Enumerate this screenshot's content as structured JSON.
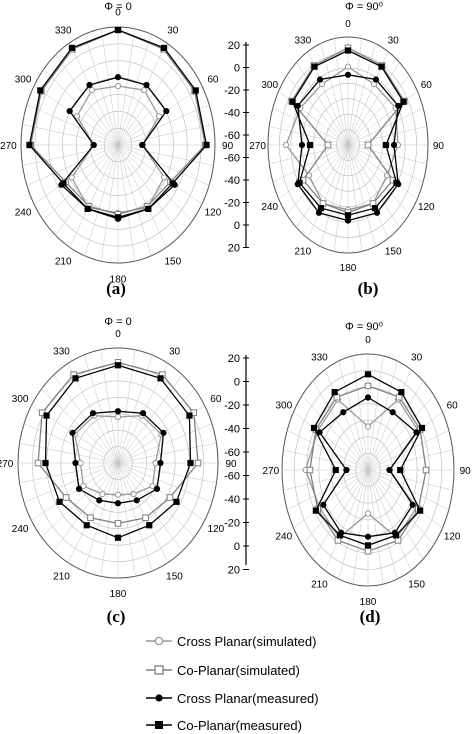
{
  "chart_data": [
    {
      "panel": "(a)",
      "type": "polar-line",
      "title": "Φ = 0",
      "angle_labels": [
        "0",
        "30",
        "60",
        "90",
        "120",
        "150",
        "180",
        "210",
        "240",
        "270",
        "300",
        "330"
      ],
      "radial_range": [
        -60,
        20
      ],
      "series": [
        {
          "name": "Cross Planar(simulated)",
          "angles": [
            0,
            30,
            60,
            90,
            120,
            150,
            180,
            210,
            240,
            270,
            300,
            330
          ],
          "values": [
            -20,
            -17,
            -21,
            -40,
            -16,
            -11,
            -14,
            -11,
            -16,
            -40,
            -21,
            -17
          ]
        },
        {
          "name": "Co-Planar(simulated)",
          "angles": [
            0,
            30,
            60,
            90,
            120,
            150,
            180,
            210,
            240,
            270,
            300,
            330
          ],
          "values": [
            18,
            15,
            13,
            12,
            -10,
            -12,
            -13,
            -12,
            -10,
            12,
            13,
            15
          ]
        },
        {
          "name": "Cross Planar(measured)",
          "angles": [
            0,
            30,
            60,
            90,
            120,
            150,
            180,
            210,
            240,
            270,
            300,
            330
          ],
          "values": [
            -14,
            -13,
            -14,
            -40,
            -6,
            -10,
            -10,
            -10,
            -6,
            -40,
            -14,
            -13
          ]
        },
        {
          "name": "Co-Planar(measured)",
          "angles": [
            0,
            30,
            60,
            90,
            120,
            150,
            180,
            210,
            240,
            270,
            300,
            330
          ],
          "values": [
            18,
            16,
            14,
            13,
            -8,
            -10,
            -11,
            -10,
            -8,
            13,
            14,
            16
          ]
        }
      ]
    },
    {
      "panel": "(b)",
      "type": "polar-line",
      "title": "Φ = 90⁰",
      "angle_labels": [
        "0",
        "30",
        "60",
        "90",
        "120",
        "150",
        "180",
        "210",
        "240",
        "270",
        "300",
        "330"
      ],
      "radial_range": [
        -60,
        20
      ],
      "series": [
        {
          "name": "Cross Planar(simulated)",
          "angles": [
            0,
            30,
            60,
            90,
            120,
            150,
            180,
            210,
            240,
            270,
            300,
            330
          ],
          "values": [
            -2,
            -8,
            -5,
            -10,
            -15,
            -10,
            -12,
            -10,
            -15,
            2,
            -5,
            -8
          ]
        },
        {
          "name": "Co-Planar(simulated)",
          "angles": [
            0,
            30,
            60,
            90,
            120,
            150,
            180,
            210,
            240,
            270,
            300,
            330
          ],
          "values": [
            12,
            8,
            5,
            -40,
            -8,
            -10,
            -10,
            -10,
            -8,
            -40,
            5,
            8
          ]
        },
        {
          "name": "Cross Planar(measured)",
          "angles": [
            0,
            30,
            60,
            90,
            120,
            150,
            180,
            210,
            240,
            270,
            300,
            330
          ],
          "values": [
            -8,
            -4,
            -2,
            -14,
            -2,
            -2,
            -4,
            -2,
            -2,
            -14,
            -2,
            -4
          ]
        },
        {
          "name": "Co-Planar(measured)",
          "angles": [
            0,
            30,
            60,
            90,
            120,
            150,
            180,
            210,
            240,
            270,
            300,
            330
          ],
          "values": [
            10,
            7,
            4,
            -22,
            -4,
            -6,
            -8,
            -6,
            -4,
            -22,
            4,
            7
          ]
        }
      ]
    },
    {
      "panel": "(c)",
      "type": "polar-line",
      "title": "Φ = 0",
      "angle_labels": [
        "0",
        "30",
        "60",
        "90",
        "120",
        "150",
        "180",
        "210",
        "240",
        "270",
        "300",
        "330"
      ],
      "radial_range": [
        -60,
        20
      ],
      "series": [
        {
          "name": "Cross Planar(simulated)",
          "angles": [
            0,
            30,
            60,
            90,
            120,
            150,
            180,
            210,
            240,
            270,
            300,
            330
          ],
          "values": [
            -28,
            -22,
            -20,
            -30,
            -28,
            -35,
            -38,
            -35,
            -28,
            -30,
            -20,
            -22
          ]
        },
        {
          "name": "Co-Planar(simulated)",
          "angles": [
            0,
            30,
            60,
            90,
            120,
            150,
            180,
            210,
            240,
            270,
            300,
            330
          ],
          "values": [
            10,
            11,
            10,
            4,
            -12,
            -16,
            -18,
            -16,
            -12,
            4,
            10,
            11
          ]
        },
        {
          "name": "Cross Planar(measured)",
          "angles": [
            0,
            30,
            60,
            90,
            120,
            150,
            180,
            210,
            240,
            270,
            300,
            330
          ],
          "values": [
            -24,
            -20,
            -18,
            -26,
            -24,
            -30,
            -32,
            -30,
            -24,
            -26,
            -18,
            -20
          ]
        },
        {
          "name": "Co-Planar(measured)",
          "angles": [
            0,
            30,
            60,
            90,
            120,
            150,
            180,
            210,
            240,
            270,
            300,
            330
          ],
          "values": [
            8,
            8,
            6,
            -2,
            -6,
            -10,
            -8,
            -10,
            -6,
            -2,
            6,
            8
          ]
        }
      ]
    },
    {
      "panel": "(d)",
      "type": "polar-line",
      "title": "Φ = 90⁰",
      "angle_labels": [
        "0",
        "30",
        "60",
        "90",
        "120",
        "150",
        "180",
        "210",
        "240",
        "270",
        "300",
        "330"
      ],
      "radial_range": [
        -60,
        20
      ],
      "series": [
        {
          "name": "Cross Planar(simulated)",
          "angles": [
            0,
            30,
            60,
            90,
            120,
            150,
            180,
            210,
            240,
            270,
            300,
            330
          ],
          "values": [
            -30,
            -4,
            -6,
            -40,
            -8,
            -6,
            -30,
            -6,
            -8,
            -2,
            -6,
            -4
          ]
        },
        {
          "name": "Co-Planar(simulated)",
          "angles": [
            0,
            30,
            60,
            90,
            120,
            150,
            180,
            210,
            240,
            270,
            300,
            330
          ],
          "values": [
            -2,
            -2,
            -4,
            -6,
            -6,
            -4,
            -4,
            -4,
            -6,
            -6,
            -4,
            -2
          ]
        },
        {
          "name": "Cross Planar(measured)",
          "angles": [
            0,
            30,
            60,
            90,
            120,
            150,
            180,
            210,
            240,
            270,
            300,
            330
          ],
          "values": [
            -10,
            -14,
            -8,
            -40,
            -12,
            -10,
            -14,
            -10,
            -12,
            -40,
            -8,
            -14
          ]
        },
        {
          "name": "Co-Planar(measured)",
          "angles": [
            0,
            30,
            60,
            90,
            120,
            150,
            180,
            210,
            240,
            270,
            300,
            330
          ],
          "values": [
            6,
            2,
            -2,
            -30,
            -4,
            -8,
            -8,
            -8,
            -4,
            -30,
            -2,
            2
          ]
        }
      ]
    }
  ],
  "radial_scales": [
    {
      "labels": [
        "20",
        "0",
        "-20",
        "-40",
        "-60",
        "-60",
        "-40",
        "-20",
        "0",
        "20"
      ]
    },
    {
      "labels": [
        "20",
        "0",
        "-20",
        "-40",
        "-60",
        "-60",
        "-40",
        "-20",
        "0",
        "20"
      ]
    }
  ],
  "legend": {
    "entries": [
      {
        "label": "Cross Planar(simulated)",
        "marker": "circle-open",
        "color": "#999999"
      },
      {
        "label": "Co-Planar(simulated)",
        "marker": "square-open",
        "color": "#808080"
      },
      {
        "label": "Cross Planar(measured)",
        "marker": "circle-filled",
        "color": "#000000"
      },
      {
        "label": "Co-Planar(measured)",
        "marker": "square-filled",
        "color": "#000000"
      }
    ]
  }
}
